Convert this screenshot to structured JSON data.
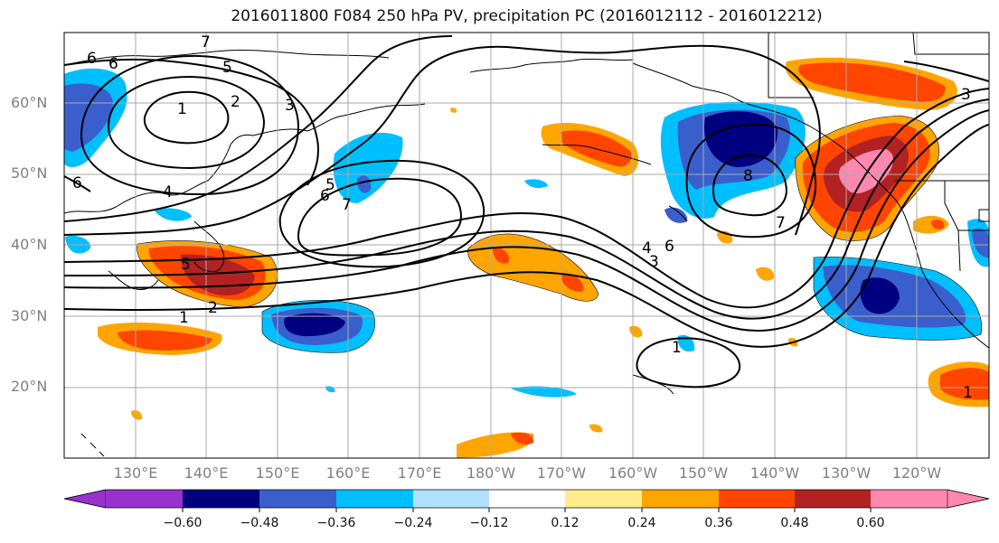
{
  "title": "2016011800 F084 250 hPa PV, precipitation PC (2016012112 - 2016012212)",
  "lat_labels": [
    "60°N",
    "50°N",
    "40°N",
    "30°N",
    "20°N"
  ],
  "lon_labels": [
    "130°E",
    "140°E",
    "150°E",
    "160°E",
    "170°E",
    "180°W",
    "170°W",
    "160°W",
    "150°W",
    "140°W",
    "130°W",
    "120°W"
  ],
  "contour_labels": [
    "7",
    "6",
    "6",
    "5",
    "1",
    "2",
    "3",
    "6",
    "4",
    "5",
    "6",
    "7",
    "5",
    "2",
    "1",
    "4",
    "3",
    "6",
    "8",
    "7",
    "1",
    "1",
    "3"
  ],
  "colorbar": {
    "colors": [
      "#9932cc",
      "#000080",
      "#3a5fcd",
      "#00bfff",
      "#b0e2ff",
      "#ffffff",
      "#ffec8b",
      "#ffa500",
      "#ff4500",
      "#b22222",
      "#ff88b0"
    ],
    "ticks": [
      "−0.60",
      "−0.48",
      "−0.36",
      "−0.24",
      "−0.12",
      "0.12",
      "0.24",
      "0.36",
      "0.48",
      "0.60"
    ]
  }
}
